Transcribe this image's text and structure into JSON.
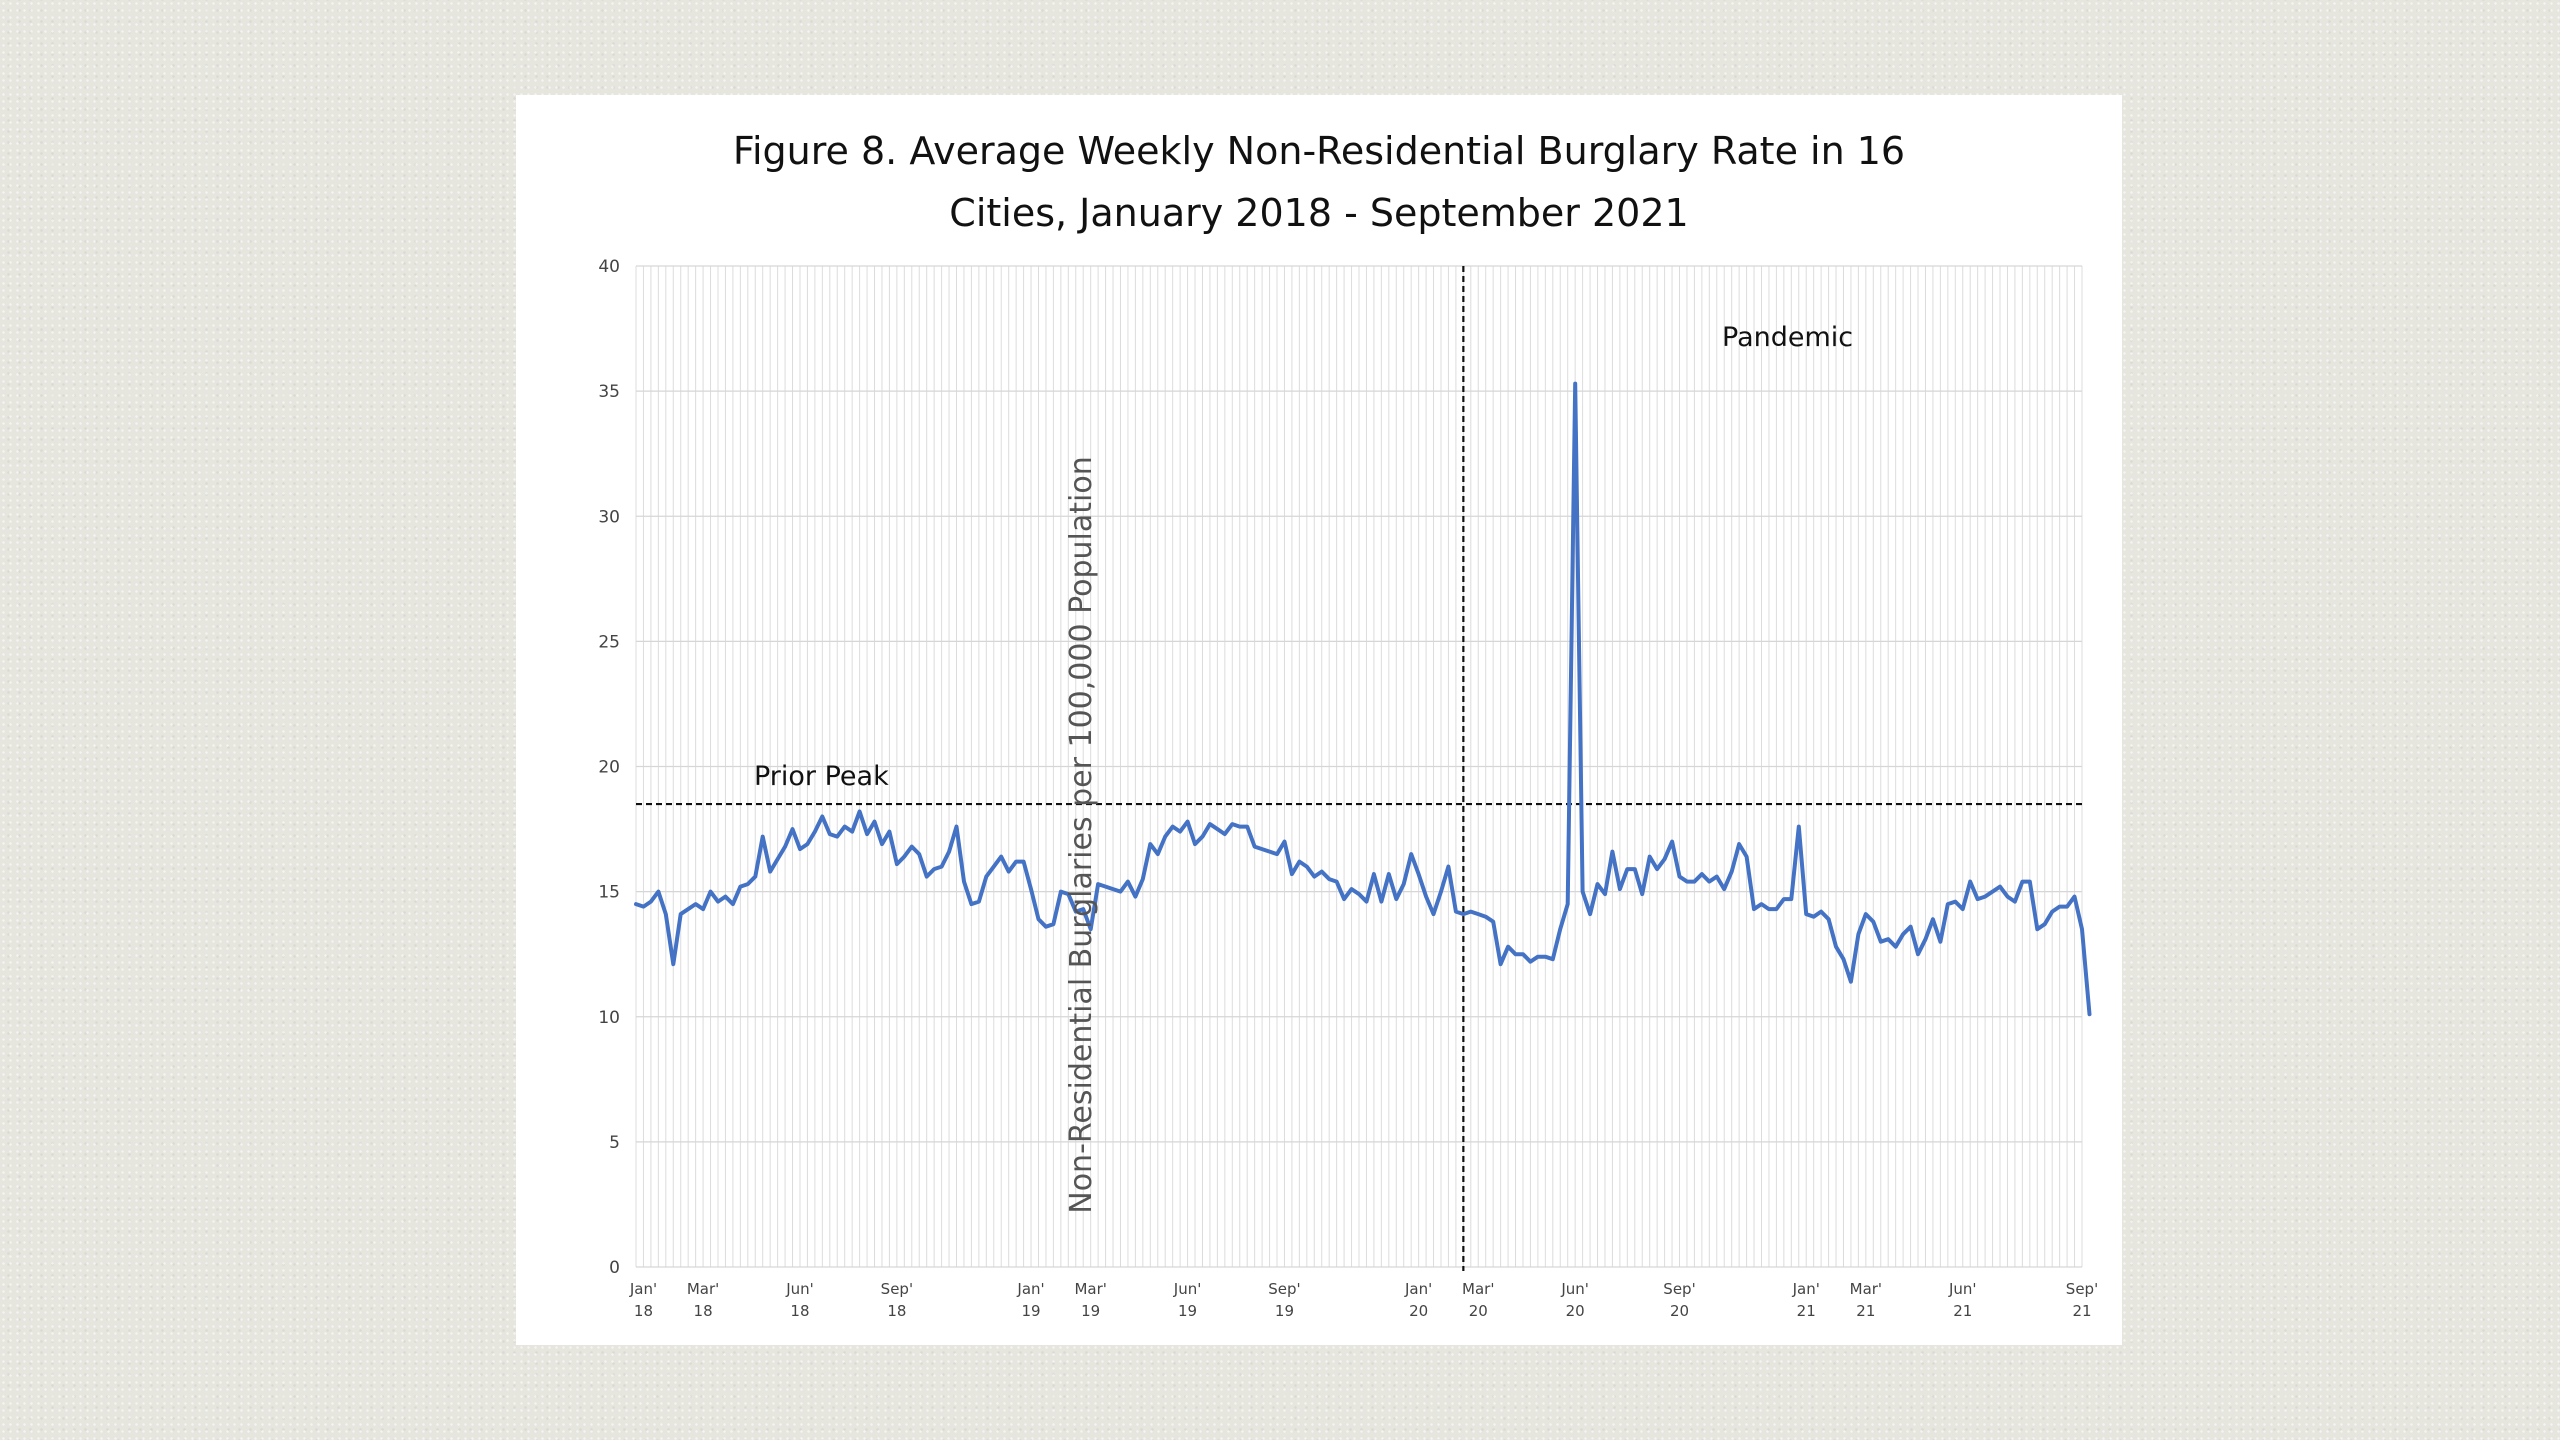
{
  "chart_data": {
    "type": "line",
    "title": [
      "Figure 8. Average Weekly Non-Residential Burglary Rate in 16",
      "Cities, January 2018 - September 2021"
    ],
    "ylabel": "Non-Residential Burglaries per 100,000 Population",
    "ylim": [
      0,
      40
    ],
    "yticks": [
      0,
      5,
      10,
      15,
      20,
      25,
      30,
      35,
      40
    ],
    "xrange": [
      0,
      194
    ],
    "xticks": [
      {
        "x": 1,
        "line1": "Jan'",
        "line2": "18"
      },
      {
        "x": 9,
        "line1": "Mar'",
        "line2": "18"
      },
      {
        "x": 22,
        "line1": "Jun'",
        "line2": "18"
      },
      {
        "x": 35,
        "line1": "Sep'",
        "line2": "18"
      },
      {
        "x": 53,
        "line1": "Jan'",
        "line2": "19"
      },
      {
        "x": 61,
        "line1": "Mar'",
        "line2": "19"
      },
      {
        "x": 74,
        "line1": "Jun'",
        "line2": "19"
      },
      {
        "x": 87,
        "line1": "Sep'",
        "line2": "19"
      },
      {
        "x": 105,
        "line1": "Jan'",
        "line2": "20"
      },
      {
        "x": 113,
        "line1": "Mar'",
        "line2": "20"
      },
      {
        "x": 126,
        "line1": "Jun'",
        "line2": "20"
      },
      {
        "x": 140,
        "line1": "Sep'",
        "line2": "20"
      },
      {
        "x": 157,
        "line1": "Jan'",
        "line2": "21"
      },
      {
        "x": 165,
        "line1": "Mar'",
        "line2": "21"
      },
      {
        "x": 178,
        "line1": "Jun'",
        "line2": "21"
      },
      {
        "x": 194,
        "line1": "Sep'",
        "line2": "21"
      }
    ],
    "grid": true,
    "series": [
      {
        "color": "#4472c4",
        "values": [
          14.5,
          14.4,
          14.6,
          15.0,
          14.1,
          12.1,
          14.1,
          14.3,
          14.5,
          14.3,
          15.0,
          14.6,
          14.8,
          14.5,
          15.2,
          15.3,
          15.6,
          17.2,
          15.8,
          16.3,
          16.8,
          17.5,
          16.7,
          16.9,
          17.4,
          18.0,
          17.3,
          17.2,
          17.6,
          17.4,
          18.2,
          17.3,
          17.8,
          16.9,
          17.4,
          16.1,
          16.4,
          16.8,
          16.5,
          15.6,
          15.9,
          16.0,
          16.6,
          17.6,
          15.4,
          14.5,
          14.6,
          15.6,
          16.0,
          16.4,
          15.8,
          16.2,
          16.2,
          15.1,
          13.9,
          13.6,
          13.7,
          15.0,
          14.9,
          14.2,
          14.3,
          13.5,
          15.3,
          15.2,
          15.1,
          15.0,
          15.4,
          14.8,
          15.5,
          16.9,
          16.5,
          17.2,
          17.6,
          17.4,
          17.8,
          16.9,
          17.2,
          17.7,
          17.5,
          17.3,
          17.7,
          17.6,
          17.6,
          16.8,
          16.7,
          16.6,
          16.5,
          17.0,
          15.7,
          16.2,
          16.0,
          15.6,
          15.8,
          15.5,
          15.4,
          14.7,
          15.1,
          14.9,
          14.6,
          15.7,
          14.6,
          15.7,
          14.7,
          15.3,
          16.5,
          15.7,
          14.8,
          14.1,
          15.0,
          16.0,
          14.2,
          14.1,
          14.2,
          14.1,
          14.0,
          13.8,
          12.1,
          12.8,
          12.5,
          12.5,
          12.2,
          12.4,
          12.4,
          12.3,
          13.5,
          14.5,
          35.3,
          15.0,
          14.1,
          15.3,
          14.9,
          16.6,
          15.1,
          15.9,
          15.9,
          14.9,
          16.4,
          15.9,
          16.3,
          17.0,
          15.6,
          15.4,
          15.4,
          15.7,
          15.4,
          15.6,
          15.1,
          15.8,
          16.9,
          16.4,
          14.3,
          14.5,
          14.3,
          14.3,
          14.7,
          14.7,
          17.6,
          14.1,
          14.0,
          14.2,
          13.9,
          12.8,
          12.3,
          11.4,
          13.3,
          14.1,
          13.8,
          13.0,
          13.1,
          12.8,
          13.3,
          13.6,
          12.5,
          13.1,
          13.9,
          13.0,
          14.5,
          14.6,
          14.3,
          15.4,
          14.7,
          14.8,
          15.0,
          15.2,
          14.8,
          14.6,
          15.4,
          15.4,
          13.5,
          13.7,
          14.2,
          14.4,
          14.4,
          14.8,
          13.5,
          10.1
        ]
      }
    ],
    "reference_lines": [
      {
        "orientation": "horizontal",
        "y": 18.5,
        "label": "Prior Peak",
        "style": "dashed"
      },
      {
        "orientation": "vertical",
        "x": 111,
        "label": "Pandemic",
        "style": "dashed"
      }
    ]
  }
}
